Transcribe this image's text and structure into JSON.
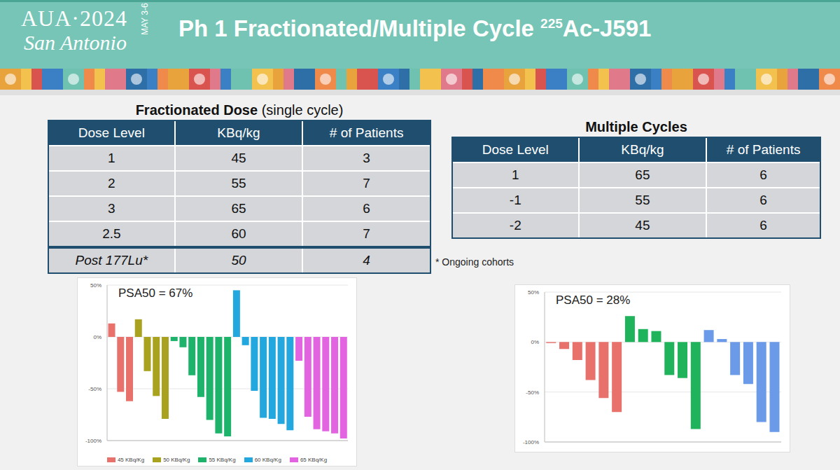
{
  "header": {
    "line1": "AUA·2024",
    "line2": "San Antonio",
    "dates": "MAY 3-6",
    "title": "Ph 1 Fractionated/Multiple Cycle ",
    "title_superscript": "225",
    "title_suffix": "Ac-J591"
  },
  "tables": [
    {
      "title": "Fractionated Dose",
      "subtitle": "(single cycle)",
      "columns": [
        "Dose Level",
        "KBq/kg",
        "# of Patients"
      ],
      "rows": [
        [
          "1",
          "45",
          "3"
        ],
        [
          "2",
          "55",
          "7"
        ],
        [
          "3",
          "65",
          "6"
        ],
        [
          "2.5",
          "60",
          "7"
        ]
      ],
      "footer_row": [
        "Post 177Lu*",
        "50",
        "4"
      ]
    },
    {
      "title": "Multiple Cycles",
      "columns": [
        "Dose Level",
        "KBq/kg",
        "# of Patients"
      ],
      "rows": [
        [
          "1",
          "65",
          "6"
        ],
        [
          "-1",
          "55",
          "6"
        ],
        [
          "-2",
          "45",
          "6"
        ]
      ],
      "footnote": "* Ongoing cohorts"
    }
  ],
  "chart_data": [
    {
      "type": "bar",
      "annotation": "PSA50 = 67%",
      "grid": true,
      "legend": "bottom",
      "tick_labels": "y",
      "categories": [
        null,
        null,
        null,
        null,
        null,
        null,
        null,
        null,
        null,
        null,
        null,
        null,
        null,
        null,
        null,
        null,
        null,
        null,
        null,
        null,
        null,
        null,
        null,
        null,
        null,
        null,
        null
      ],
      "ylim": [
        -100,
        50
      ],
      "yticks": [
        {
          "value": -100,
          "label": "-100%"
        },
        {
          "value": -50,
          "label": "-50%"
        },
        {
          "value": 0,
          "label": "0%"
        },
        {
          "value": 50,
          "label": "50%"
        }
      ],
      "series": [
        {
          "name": "45 KBq/Kg",
          "color": "#e8716b",
          "values": [
            13,
            -53,
            -62,
            null,
            null,
            null,
            null,
            null,
            null,
            null,
            null,
            null,
            null,
            null,
            null,
            null,
            null,
            null,
            null,
            null,
            null,
            null,
            null,
            null,
            null,
            null,
            null
          ]
        },
        {
          "name": "50 KBq/Kg",
          "color": "#a8a21e",
          "values": [
            null,
            null,
            null,
            17,
            -33,
            -57,
            -79,
            null,
            null,
            null,
            null,
            null,
            null,
            null,
            null,
            null,
            null,
            null,
            null,
            null,
            null,
            null,
            null,
            null,
            null,
            null,
            null
          ]
        },
        {
          "name": "55 KBq/Kg",
          "color": "#1db36b",
          "values": [
            null,
            null,
            null,
            null,
            null,
            null,
            null,
            -4,
            -10,
            -37,
            -58,
            -80,
            -93,
            -96,
            null,
            null,
            null,
            null,
            null,
            null,
            null,
            null,
            null,
            null,
            null,
            null,
            null
          ]
        },
        {
          "name": "60 KBq/Kg",
          "color": "#23a7df",
          "values": [
            null,
            null,
            null,
            null,
            null,
            null,
            null,
            null,
            null,
            null,
            null,
            null,
            null,
            null,
            45,
            -8,
            -52,
            -78,
            -79,
            -84,
            -90,
            null,
            null,
            null,
            null,
            null,
            null
          ]
        },
        {
          "name": "65 KBq/Kg",
          "color": "#e264e0",
          "values": [
            null,
            null,
            null,
            null,
            null,
            null,
            null,
            null,
            null,
            null,
            null,
            null,
            null,
            null,
            null,
            null,
            null,
            null,
            null,
            null,
            null,
            -23,
            -77,
            -89,
            -91,
            -93,
            -98
          ]
        }
      ]
    },
    {
      "type": "bar",
      "annotation": "PSA50 = 28%",
      "grid": true,
      "tick_labels": "y",
      "categories": [
        null,
        null,
        null,
        null,
        null,
        null,
        null,
        null,
        null,
        null,
        null,
        null,
        null,
        null,
        null,
        null,
        null,
        null
      ],
      "ylim": [
        -100,
        50
      ],
      "yticks": [
        {
          "value": -100,
          "label": "-100%"
        },
        {
          "value": -50,
          "label": "-50%"
        },
        {
          "value": 0,
          "label": "0%"
        },
        {
          "value": 50,
          "label": "50%"
        }
      ],
      "series": [
        {
          "color": "#e8716b",
          "values": [
            -1,
            -7,
            -18,
            -38,
            -56,
            -70,
            null,
            null,
            null,
            null,
            null,
            null,
            null,
            null,
            null,
            null,
            null,
            null
          ]
        },
        {
          "color": "#1fb35b",
          "values": [
            null,
            null,
            null,
            null,
            null,
            null,
            26,
            13,
            11,
            -33,
            -36,
            -87,
            null,
            null,
            null,
            null,
            null,
            null
          ]
        },
        {
          "color": "#6a9ae8",
          "values": [
            null,
            null,
            null,
            null,
            null,
            null,
            null,
            null,
            null,
            null,
            null,
            null,
            12,
            3,
            -33,
            -42,
            -80,
            -90
          ]
        }
      ]
    }
  ]
}
